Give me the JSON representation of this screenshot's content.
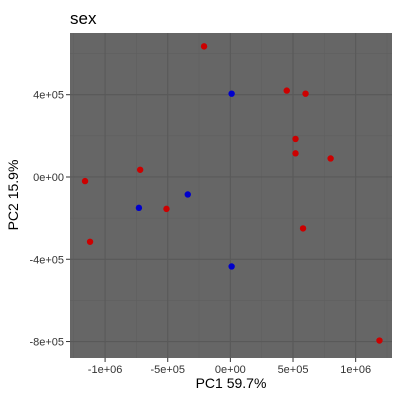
{
  "chart_data": {
    "type": "scatter",
    "title": "sex",
    "xlabel": "PC1 59.7%",
    "ylabel": "PC2 15.9%",
    "xlim": [
      -1280000,
      1290000
    ],
    "ylim": [
      -880000,
      700000
    ],
    "x_ticks": [
      -1000000,
      -500000,
      0,
      500000,
      1000000
    ],
    "x_tick_labels": [
      "-1e+06",
      "-5e+05",
      "0e+00",
      "5e+05",
      "1e+06"
    ],
    "y_ticks": [
      -800000,
      -400000,
      0,
      400000
    ],
    "y_tick_labels": [
      "-8e+05",
      "-4e+05",
      "0e+00",
      "4e+05"
    ],
    "grid": true,
    "legend": "none",
    "colors": {
      "panel": "#666666",
      "grid_major": "#595959",
      "grid_minor": "#5f5f5f",
      "red": "#cc0000",
      "blue": "#0000cc"
    },
    "series": [
      {
        "color": "red",
        "points": [
          {
            "x": -210000,
            "y": 635000
          },
          {
            "x": 450000,
            "y": 420000
          },
          {
            "x": 600000,
            "y": 405000
          },
          {
            "x": 520000,
            "y": 185000
          },
          {
            "x": 520000,
            "y": 115000
          },
          {
            "x": 800000,
            "y": 90000
          },
          {
            "x": -1160000,
            "y": -20000
          },
          {
            "x": -720000,
            "y": 35000
          },
          {
            "x": -510000,
            "y": -155000
          },
          {
            "x": 580000,
            "y": -250000
          },
          {
            "x": -1120000,
            "y": -315000
          },
          {
            "x": 1190000,
            "y": -795000
          }
        ]
      },
      {
        "color": "blue",
        "points": [
          {
            "x": 10000,
            "y": 405000
          },
          {
            "x": -340000,
            "y": -85000
          },
          {
            "x": -730000,
            "y": -150000
          },
          {
            "x": 10000,
            "y": -435000
          }
        ]
      }
    ]
  }
}
